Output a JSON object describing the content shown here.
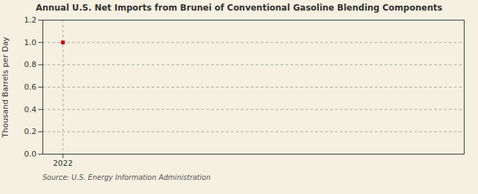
{
  "chart_data": {
    "type": "scatter",
    "title": "Annual U.S. Net Imports from Brunei of Conventional Gasoline Blending Components",
    "ylabel": "Thousand Barrels per Day",
    "source": "Source: U.S. Energy Information Administration",
    "x": [
      2022
    ],
    "values": [
      1.0
    ],
    "color": "#cc0000",
    "marker": "square",
    "xlim": [
      2021.7,
      2028.0
    ],
    "xticks": [
      2022
    ],
    "ylim": [
      0.0,
      1.2
    ],
    "yticks": [
      {
        "value": 0.0,
        "label": "0.0"
      },
      0.2,
      0.4,
      0.6,
      0.8,
      {
        "value": 1.0,
        "label": "1.0"
      },
      1.2
    ],
    "grid": true
  }
}
